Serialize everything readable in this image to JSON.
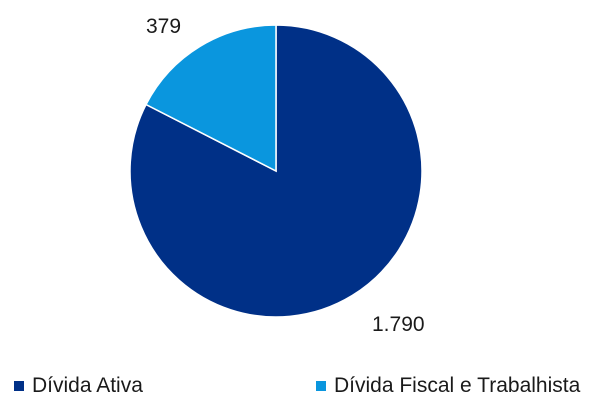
{
  "chart_data": {
    "type": "pie",
    "title": "",
    "categories": [
      "Dívida Ativa",
      "Dívida Fiscal e Trabalhista"
    ],
    "values": [
      1790,
      379
    ],
    "data_labels": [
      "1.790",
      "379"
    ],
    "colors": [
      "#003087",
      "#0A96DE"
    ],
    "legend_position": "bottom"
  }
}
